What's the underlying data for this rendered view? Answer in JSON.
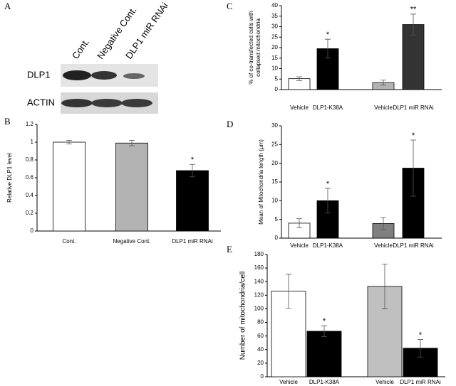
{
  "panels": [
    "A",
    "B",
    "C",
    "D",
    "E"
  ],
  "blot": {
    "lanes": [
      "Cont.",
      "Negative Cont.",
      "DLP1 miR RNAi"
    ],
    "rows": [
      "DLP1",
      "ACTIN"
    ]
  },
  "chart_data": [
    {
      "type": "bar",
      "ylabel": "Relative DLP1 level",
      "categories": [
        "Cont.",
        "Negative Cont.",
        "DLP1 miR RNAi"
      ],
      "values": [
        1.0,
        0.99,
        0.68
      ],
      "errors": [
        0.02,
        0.03,
        0.07
      ],
      "colors": [
        "#ffffff",
        "#b3b3b3",
        "#000000"
      ],
      "significance": [
        null,
        null,
        "*"
      ],
      "ylim": [
        0,
        1.2
      ],
      "yticks": [
        0,
        0.2,
        0.4,
        0.6,
        0.8,
        1,
        1.2
      ]
    },
    {
      "type": "bar",
      "ylabel": [
        "% of co-transfected cells with",
        "collapsed mitochondria"
      ],
      "categories": [
        "Vehicle",
        "DLP1-K38A",
        "Vehicle",
        "DLP1  miR RNAi"
      ],
      "values": [
        5.2,
        19.5,
        3.3,
        31
      ],
      "errors": [
        0.9,
        4.5,
        1.2,
        5
      ],
      "colors": [
        "#ffffff",
        "#000000",
        "#b3b3b3",
        "#333333"
      ],
      "significance": [
        null,
        "*",
        null,
        "**"
      ],
      "ylim": [
        0,
        40
      ],
      "yticks": [
        0,
        5,
        10,
        15,
        20,
        25,
        30,
        35,
        40
      ]
    },
    {
      "type": "bar",
      "ylabel": "Mean of Mitochondria length (µm)",
      "categories": [
        "Vehicle",
        "DLP1-K38A",
        "Vehicle",
        "DLP1  miR RNAi"
      ],
      "values": [
        4,
        10,
        3.9,
        18.7
      ],
      "errors": [
        1.2,
        3.3,
        1.6,
        7.5
      ],
      "colors": [
        "#ffffff",
        "#000000",
        "#808080",
        "#000000"
      ],
      "significance": [
        null,
        "*",
        null,
        "*"
      ],
      "ylim": [
        0,
        30
      ],
      "yticks": [
        0,
        5,
        10,
        15,
        20,
        25,
        30
      ]
    },
    {
      "type": "bar",
      "ylabel": "Number of mitochondria/cell",
      "categories": [
        "Vehicle",
        "DLP1-K38A",
        "Vehicle",
        "DLP1  miR RNAi"
      ],
      "values": [
        126,
        67,
        133,
        42
      ],
      "errors": [
        25,
        8,
        33,
        13
      ],
      "colors": [
        "#ffffff",
        "#000000",
        "#c0c0c0",
        "#000000"
      ],
      "significance": [
        null,
        "*",
        null,
        "*"
      ],
      "ylim": [
        0,
        180
      ],
      "yticks": [
        0,
        20,
        40,
        60,
        80,
        100,
        120,
        140,
        160,
        180
      ]
    }
  ]
}
